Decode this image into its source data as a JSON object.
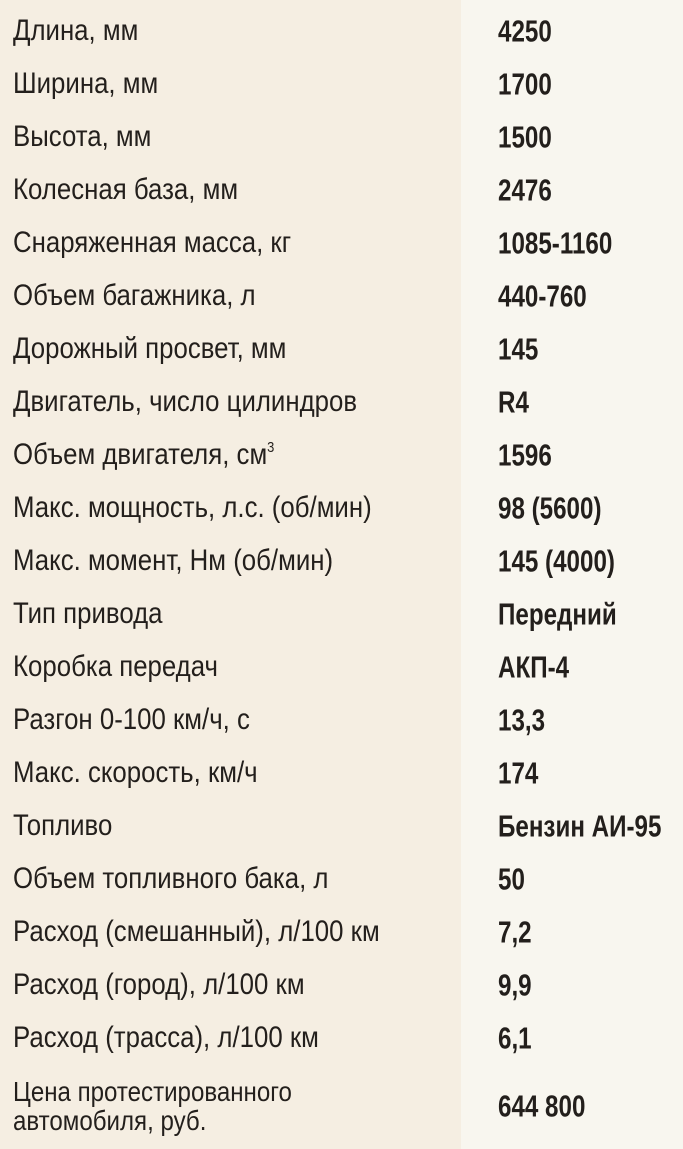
{
  "rows": [
    {
      "label": "Длина, мм",
      "value": "4250"
    },
    {
      "label": "Ширина, мм",
      "value": "1700"
    },
    {
      "label": "Высота, мм",
      "value": "1500"
    },
    {
      "label": "Колесная база, мм",
      "value": "2476"
    },
    {
      "label": "Снаряженная масса, кг",
      "value": "1085-1160"
    },
    {
      "label": "Объем багажника, л",
      "value": "440-760"
    },
    {
      "label": "Дорожный просвет, мм",
      "value": "145"
    },
    {
      "label": "Двигатель, число цилиндров",
      "value": "R4"
    },
    {
      "label": "Объем двигателя, см",
      "sup": "3",
      "value": "1596"
    },
    {
      "label": "Макс. мощность, л.с. (об/мин)",
      "value": "98 (5600)"
    },
    {
      "label": "Макс. момент, Нм (об/мин)",
      "value": "145 (4000)"
    },
    {
      "label": "Тип привода",
      "value": "Передний"
    },
    {
      "label": "Коробка передач",
      "value": "АКП-4"
    },
    {
      "label": "Разгон 0-100 км/ч, с",
      "value": "13,3"
    },
    {
      "label": "Макс. скорость, км/ч",
      "value": "174"
    },
    {
      "label": "Топливо",
      "value": "Бензин АИ-95"
    },
    {
      "label": "Объем топливного бака, л",
      "value": "50"
    },
    {
      "label": "Расход (смешанный), л/100 км",
      "value": "7,2"
    },
    {
      "label": "Расход (город), л/100 км",
      "value": "9,9"
    },
    {
      "label": "Расход (трасса), л/100 км",
      "value": "6,1"
    }
  ],
  "price": {
    "label_line1": "Цена протестированного",
    "label_line2": "автомобиля, руб.",
    "value": "644 800"
  }
}
